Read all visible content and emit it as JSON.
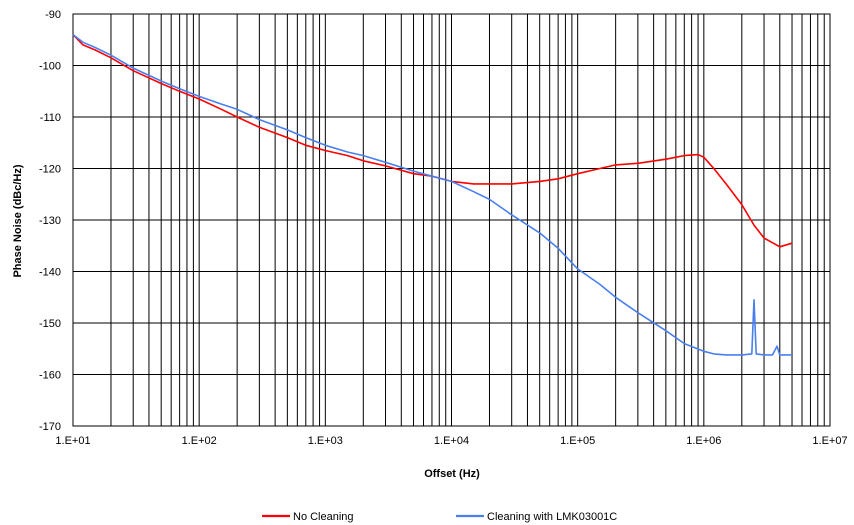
{
  "chart_data": {
    "type": "line",
    "title": "",
    "xlabel": "Offset (Hz)",
    "ylabel": "Phase Noise (dBc/Hz)",
    "xscale": "log",
    "xlim": [
      10,
      10000000
    ],
    "ylim": [
      -170,
      -90
    ],
    "xticks": [
      10,
      100,
      1000,
      10000,
      100000,
      1000000,
      10000000
    ],
    "xtick_labels": [
      "1.E+01",
      "1.E+02",
      "1.E+03",
      "1.E+04",
      "1.E+05",
      "1.E+06",
      "1.E+07"
    ],
    "yticks": [
      -170,
      -160,
      -150,
      -140,
      -130,
      -120,
      -110,
      -100,
      -90
    ],
    "ytick_labels": [
      "-170",
      "-160",
      "-150",
      "-140",
      "-130",
      "-120",
      "-110",
      "-100",
      "-90"
    ],
    "grid": true,
    "legend_position": "bottom",
    "series": [
      {
        "name": "No Cleaning",
        "color": "#ff0000",
        "x": [
          10,
          12,
          15,
          20,
          30,
          50,
          70,
          100,
          150,
          200,
          300,
          500,
          700,
          1000,
          1500,
          2000,
          3000,
          5000,
          7000,
          10000,
          15000,
          20000,
          30000,
          50000,
          70000,
          100000,
          150000,
          200000,
          300000,
          500000,
          700000,
          900000,
          1000000,
          1200000,
          1500000,
          2000000,
          2500000,
          3000000,
          4000000,
          5000000
        ],
        "y": [
          -94,
          -96,
          -97,
          -98.5,
          -101,
          -103.5,
          -105,
          -106.5,
          -108.5,
          -110,
          -112,
          -114,
          -115.5,
          -116.5,
          -117.5,
          -118.5,
          -119.5,
          -121,
          -121.5,
          -122.5,
          -123,
          -123,
          -123,
          -122.5,
          -122,
          -121,
          -120,
          -119.3,
          -119,
          -118.2,
          -117.5,
          -117.3,
          -117.8,
          -120,
          -123,
          -127,
          -131,
          -133.5,
          -135.2,
          -134.5
        ]
      },
      {
        "name": "Cleaning with LMK03001C",
        "color": "#4a7ff0",
        "x": [
          10,
          12,
          15,
          20,
          30,
          50,
          70,
          100,
          150,
          200,
          300,
          500,
          700,
          1000,
          1500,
          2000,
          3000,
          5000,
          7000,
          10000,
          15000,
          20000,
          30000,
          50000,
          70000,
          100000,
          150000,
          200000,
          300000,
          500000,
          700000,
          1000000,
          1200000,
          1500000,
          2000000,
          2400000,
          2500000,
          2600000,
          3000000,
          3500000,
          3800000,
          4000000,
          5000000
        ],
        "y": [
          -94,
          -95.5,
          -96.5,
          -98,
          -100.5,
          -103,
          -104.5,
          -106,
          -107.5,
          -108.5,
          -110.5,
          -112.5,
          -114,
          -115.5,
          -116.8,
          -117.5,
          -118.8,
          -120.5,
          -121.5,
          -122.5,
          -124.5,
          -126,
          -129,
          -132.5,
          -135.5,
          -139.5,
          -142.5,
          -145,
          -148,
          -151.5,
          -154,
          -155.5,
          -156,
          -156.2,
          -156.2,
          -156,
          -145.5,
          -156,
          -156.2,
          -156.2,
          -154.5,
          -156.2,
          -156.2
        ]
      }
    ]
  }
}
